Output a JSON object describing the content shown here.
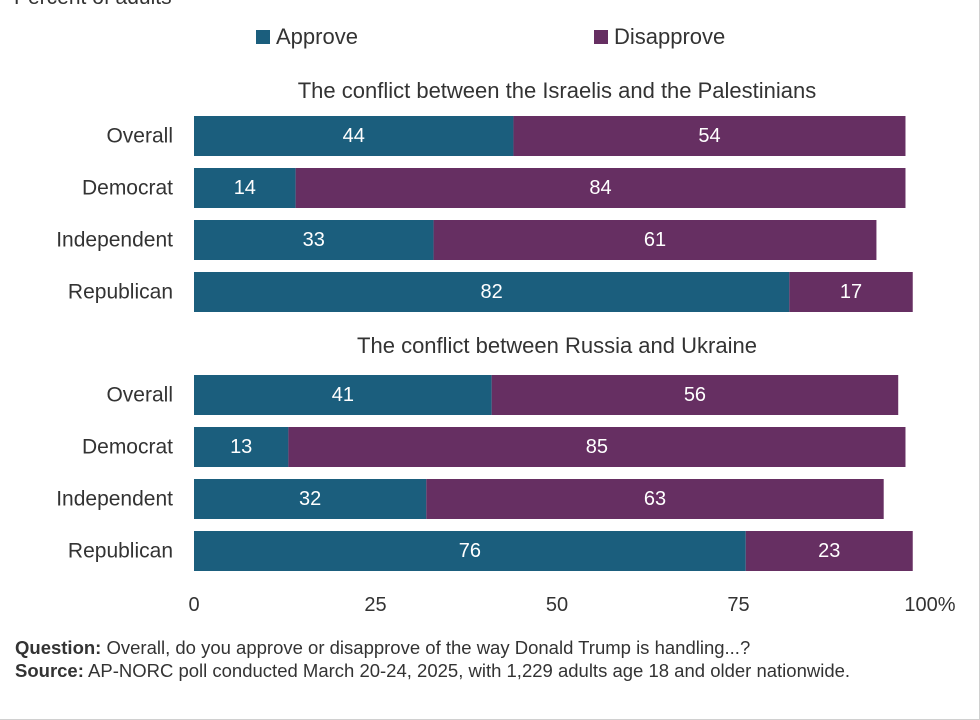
{
  "subtitle": "Percent of adults",
  "legend": {
    "approve": "Approve",
    "disapprove": "Disapprove"
  },
  "colors": {
    "approve": "#1b5e7d",
    "disapprove": "#662f62",
    "text_on_bar": "#ffffff",
    "axis_text": "#333333",
    "gridline": "#d9d9d9"
  },
  "footer": {
    "question_label": "Question:",
    "question_text": " Overall, do you approve or disapprove of the way Donald Trump is handling...?",
    "source_label": "Source:",
    "source_text": " AP-NORC poll conducted March 20-24, 2025, with 1,229 adults age 18 and older nationwide."
  },
  "chart_data": {
    "type": "bar",
    "orientation": "horizontal",
    "stacked": true,
    "xlim": [
      0,
      100
    ],
    "xticks": [
      "0",
      "25",
      "50",
      "75",
      "100%"
    ],
    "xtick_values": [
      0,
      25,
      50,
      75,
      100
    ],
    "legend_position": "top",
    "panels": [
      {
        "title": "The conflict between the Israelis and the Palestinians",
        "categories": [
          "Overall",
          "Democrat",
          "Independent",
          "Republican"
        ],
        "series": [
          {
            "name": "Approve",
            "values": [
              44,
              14,
              33,
              82
            ]
          },
          {
            "name": "Disapprove",
            "values": [
              54,
              84,
              61,
              17
            ]
          }
        ]
      },
      {
        "title": "The conflict between Russia and Ukraine",
        "categories": [
          "Overall",
          "Democrat",
          "Independent",
          "Republican"
        ],
        "series": [
          {
            "name": "Approve",
            "values": [
              41,
              13,
              32,
              76
            ]
          },
          {
            "name": "Disapprove",
            "values": [
              56,
              85,
              63,
              23
            ]
          }
        ]
      }
    ]
  }
}
